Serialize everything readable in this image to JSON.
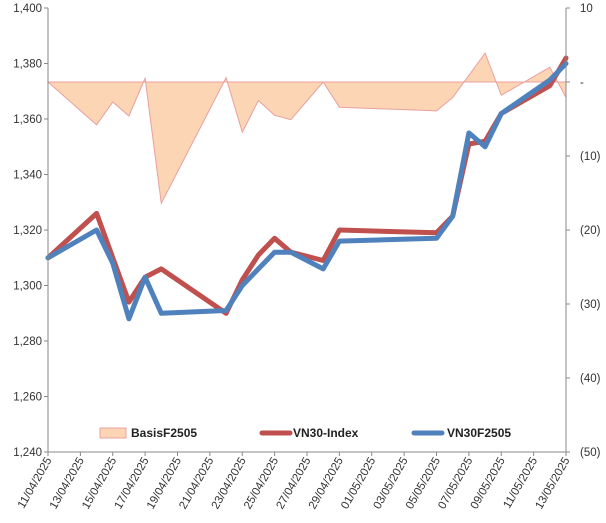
{
  "chart_data": {
    "type": "line",
    "title": "",
    "xlabel": "",
    "ylabel": "",
    "y2label": "",
    "ylim": [
      1240,
      1400
    ],
    "y2lim": [
      -50,
      10
    ],
    "y2_tick_labels": [
      "10",
      "-",
      "(10)",
      "(20)",
      "(30)",
      "(40)",
      "(50)"
    ],
    "x_tick_labels": [
      "11/04/2025",
      "13/04/2025",
      "15/04/2025",
      "17/04/2025",
      "19/04/2025",
      "21/04/2025",
      "23/04/2025",
      "25/04/2025",
      "27/04/2025",
      "29/04/2025",
      "01/05/2025",
      "03/05/2025",
      "05/05/2025",
      "07/05/2025",
      "09/05/2025",
      "11/05/2025",
      "13/05/2025"
    ],
    "x_dates": [
      "11/04/2025",
      "14/04/2025",
      "15/04/2025",
      "16/04/2025",
      "17/04/2025",
      "18/04/2025",
      "22/04/2025",
      "23/04/2025",
      "24/04/2025",
      "25/04/2025",
      "26/04/2025",
      "28/04/2025",
      "29/04/2025",
      "05/05/2025",
      "06/05/2025",
      "07/05/2025",
      "08/05/2025",
      "09/05/2025",
      "12/05/2025",
      "13/05/2025"
    ],
    "series": [
      {
        "name": "BasisF2505",
        "type": "area",
        "axis": "right",
        "color": "#fcd5b4",
        "stroke": "#e8a0a0",
        "values": [
          0.0,
          -5.8,
          -2.7,
          -4.6,
          0.5,
          -16.4,
          0.6,
          -6.8,
          -2.5,
          -4.5,
          -5.1,
          0.0,
          -3.4,
          -3.9,
          -2.1,
          0.9,
          3.9,
          -1.8,
          2.0,
          -2.1
        ]
      },
      {
        "name": "VN30-Index",
        "type": "line",
        "axis": "left",
        "color": "#c0504d",
        "values": [
          1310,
          1326,
          1310,
          1294,
          1303,
          1306,
          1290,
          1302,
          1311,
          1317,
          1312,
          1309,
          1320,
          1319,
          1325,
          1351,
          1352,
          1362,
          1372,
          1382
        ]
      },
      {
        "name": "VN30F2505",
        "type": "line",
        "axis": "left",
        "color": "#4f81bd",
        "values": [
          1310,
          1320,
          1308,
          1288,
          1303,
          1290,
          1291,
          1300,
          1306,
          1312,
          1312,
          1306,
          1316,
          1317,
          1325,
          1355,
          1350,
          1362,
          1374,
          1380
        ]
      }
    ],
    "legend": {
      "position": "bottom-inside",
      "entries": [
        "BasisF2505",
        "VN30-Index",
        "VN30F2505"
      ]
    },
    "grid": false
  }
}
